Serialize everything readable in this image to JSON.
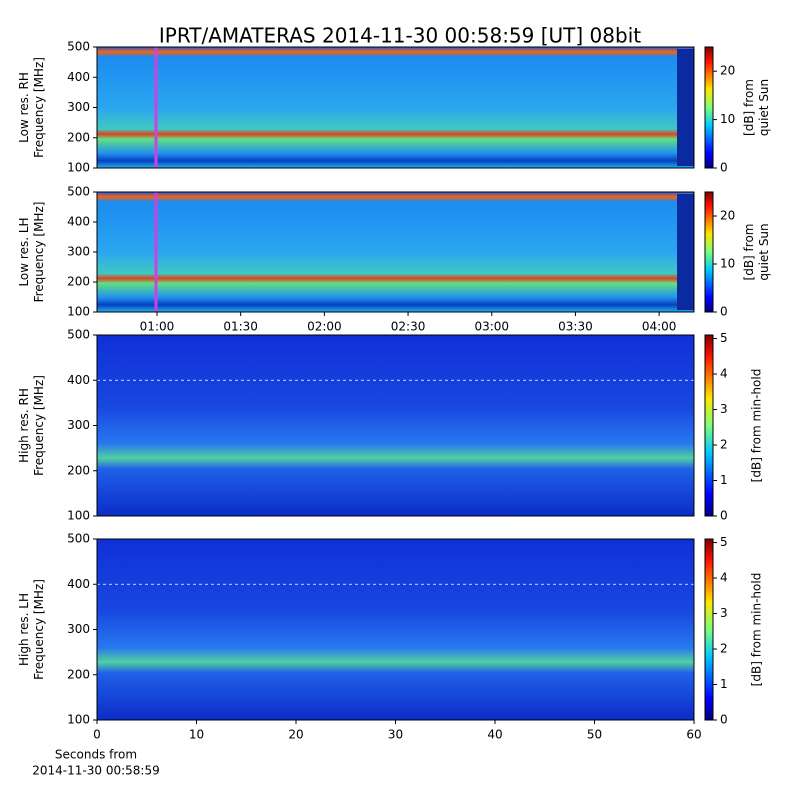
{
  "chart_data": [
    {
      "type": "heatmap",
      "title": "IPRT/AMATERAS 2014-11-30 00:58:59 [UT]   08bit",
      "ylabel": [
        "Low res. RH",
        "Frequency [MHz]"
      ],
      "ylim": [
        100,
        500
      ],
      "yticks": [
        100,
        200,
        300,
        400,
        500
      ],
      "clabel": [
        "[dB] from",
        "quiet Sun"
      ],
      "clim": [
        0,
        25
      ],
      "cticks": [
        0,
        10,
        20
      ],
      "colormap": "jet"
    },
    {
      "type": "heatmap",
      "ylabel": [
        "Low res. LH",
        "Frequency [MHz]"
      ],
      "ylim": [
        100,
        500
      ],
      "yticks": [
        100,
        200,
        300,
        400,
        500
      ],
      "xlim": [
        38.5,
        252.5
      ],
      "xticks": [
        {
          "value": 60,
          "label": "01:00"
        },
        {
          "value": 90,
          "label": "01:30"
        },
        {
          "value": 120,
          "label": "02:00"
        },
        {
          "value": 150,
          "label": "02:30"
        },
        {
          "value": 180,
          "label": "03:00"
        },
        {
          "value": 210,
          "label": "03:30"
        },
        {
          "value": 240,
          "label": "04:00"
        }
      ],
      "clabel": [
        "[dB] from",
        "quiet Sun"
      ],
      "clim": [
        0,
        25
      ],
      "cticks": [
        0,
        10,
        20
      ],
      "colormap": "jet"
    },
    {
      "type": "heatmap",
      "ylabel": [
        "High res. RH",
        "Frequency [MHz]"
      ],
      "ylim": [
        100,
        500
      ],
      "yticks": [
        100,
        200,
        300,
        400,
        500
      ],
      "clabel": [
        "[dB] from min-hold"
      ],
      "clim": [
        0,
        5.1
      ],
      "cticks": [
        0,
        1,
        2,
        3,
        4,
        5
      ],
      "colormap": "jet"
    },
    {
      "type": "heatmap",
      "ylabel": [
        "High res. LH",
        "Frequency [MHz]"
      ],
      "ylim": [
        100,
        500
      ],
      "yticks": [
        100,
        200,
        300,
        400,
        500
      ],
      "xlim": [
        0,
        60
      ],
      "xticks": [
        0,
        10,
        20,
        30,
        40,
        50,
        60
      ],
      "xlabel": [
        "Seconds from",
        "2014-11-30 00:58:59"
      ],
      "clabel": [
        "[dB] from min-hold"
      ],
      "clim": [
        0,
        5.1
      ],
      "cticks": [
        0,
        1,
        2,
        3,
        4,
        5
      ],
      "colormap": "jet"
    }
  ]
}
